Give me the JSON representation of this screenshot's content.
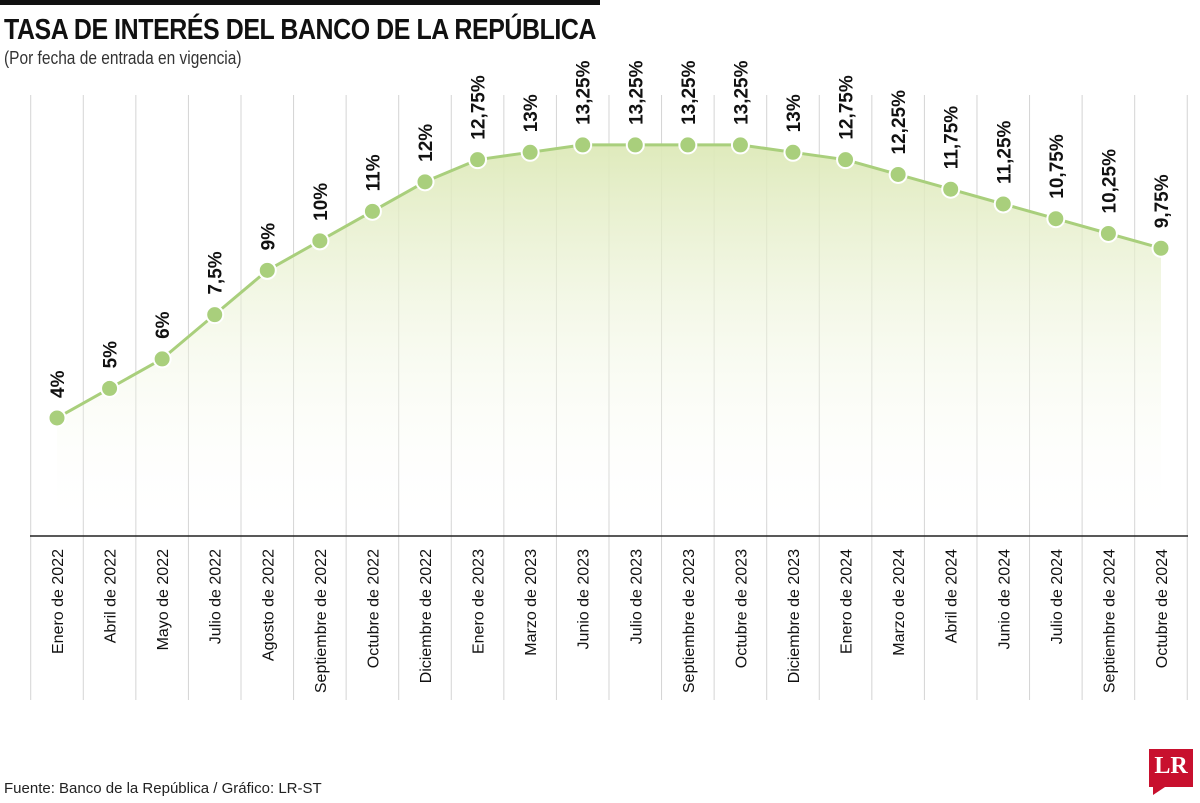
{
  "header": {
    "title": "TASA DE INTERÉS DEL BANCO DE LA REPÚBLICA",
    "subtitle": "(Por fecha de entrada en vigencia)"
  },
  "footer": {
    "source": "Fuente: Banco de la República / Gráfico: LR-ST",
    "logo_text": "LR"
  },
  "colors": {
    "line": "#a9cf7c",
    "marker": "#a9cf7c",
    "marker_stroke": "#ffffff",
    "area_top": "#dde9b8",
    "grid": "#d4d4d4",
    "axis": "#222222"
  },
  "chart_data": {
    "type": "line",
    "title": "TASA DE INTERÉS DEL BANCO DE LA REPÚBLICA",
    "subtitle": "(Por fecha de entrada en vigencia)",
    "xlabel": "",
    "ylabel": "",
    "ylim": [
      0,
      16.5
    ],
    "grid": "vertical",
    "legend": "none",
    "categories": [
      "Enero de 2022",
      "Abril de 2022",
      "Mayo de 2022",
      "Julio de 2022",
      "Agosto de 2022",
      "Septiembre de 2022",
      "Octubre de 2022",
      "Diciembre de 2022",
      "Enero de 2023",
      "Marzo de 2023",
      "Junio de 2023",
      "Julio de 2023",
      "Septiembre de 2023",
      "Octubre de 2023",
      "Diciembre de 2023",
      "Enero de 2024",
      "Marzo de 2024",
      "Abril de 2024",
      "Junio de 2024",
      "Julio de 2024",
      "Septiembre de 2024",
      "Octubre de 2024"
    ],
    "values": [
      4,
      5,
      6,
      7.5,
      9,
      10,
      11,
      12,
      12.75,
      13,
      13.25,
      13.25,
      13.25,
      13.25,
      13,
      12.75,
      12.25,
      11.75,
      11.25,
      10.75,
      10.25,
      9.75
    ],
    "labels": [
      "4%",
      "5%",
      "6%",
      "7,5%",
      "9%",
      "10%",
      "11%",
      "12%",
      "12,75%",
      "13%",
      "13,25%",
      "13,25%",
      "13,25%",
      "13,25%",
      "13%",
      "12,75%",
      "12,25%",
      "11,75%",
      "11,25%",
      "10,75%",
      "10,25%",
      "9,75%"
    ]
  }
}
